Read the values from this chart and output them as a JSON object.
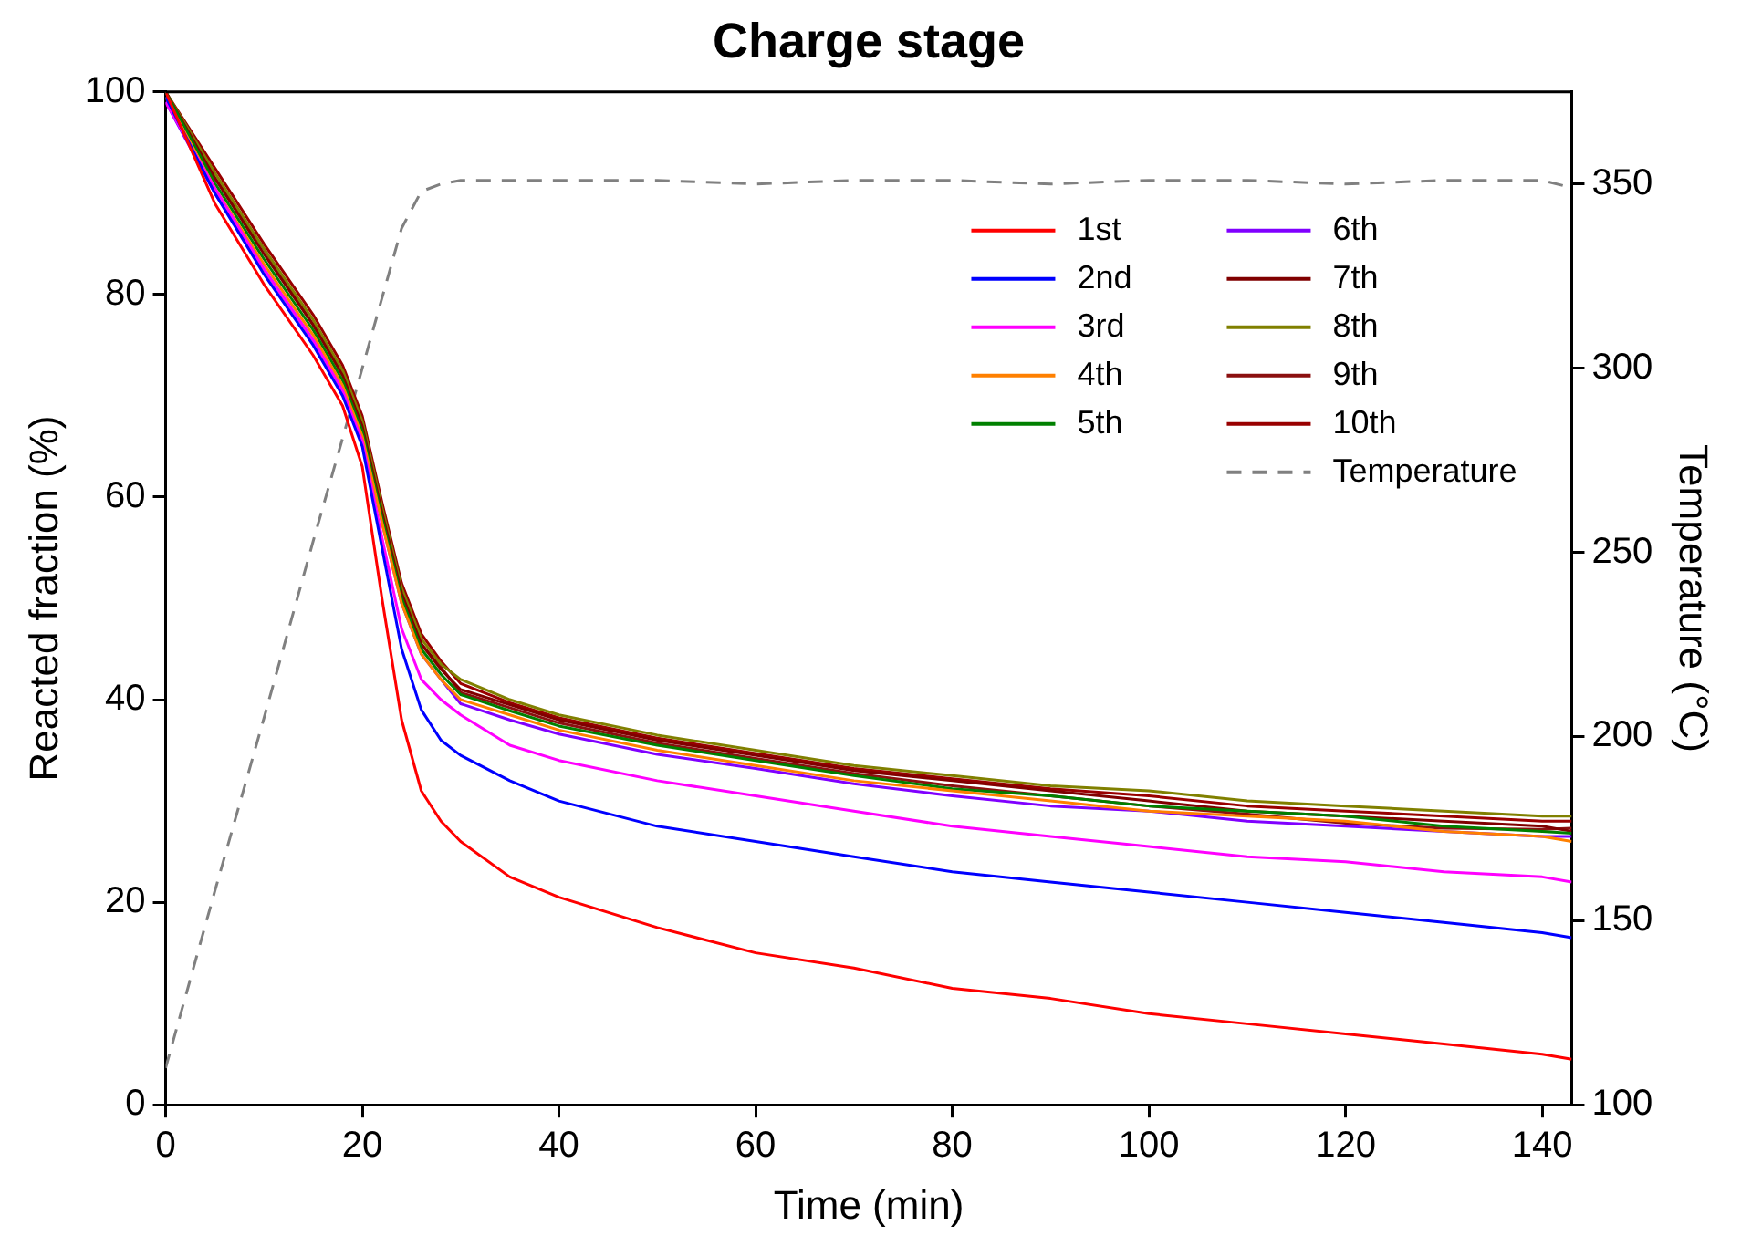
{
  "chart_data": {
    "type": "line",
    "title": "Charge stage",
    "xlabel": "Time (min)",
    "ylabel": "Reacted fraction (%)",
    "y2label": "Temperature (°C)",
    "x": [
      0,
      5,
      10,
      15,
      18,
      20,
      22,
      24,
      26,
      28,
      30,
      35,
      40,
      50,
      60,
      70,
      80,
      90,
      100,
      110,
      120,
      130,
      140,
      143
    ],
    "xlim": [
      0,
      143
    ],
    "xticks": [
      0,
      20,
      40,
      60,
      80,
      100,
      120,
      140
    ],
    "ylim": [
      0,
      100
    ],
    "yticks": [
      0,
      20,
      40,
      60,
      80,
      100
    ],
    "y2lim": [
      100,
      375
    ],
    "y2ticks": [
      100,
      150,
      200,
      250,
      300,
      350
    ],
    "grid": false,
    "legend": "top right",
    "marker": "none",
    "series": [
      {
        "name": "1st",
        "color": "#ff0000",
        "values": [
          100,
          89,
          81,
          74,
          69,
          63,
          50,
          38,
          31,
          28,
          26,
          22.5,
          20.5,
          17.5,
          15,
          13.5,
          11.5,
          10.5,
          9,
          8,
          7,
          6,
          5,
          4.5
        ]
      },
      {
        "name": "2nd",
        "color": "#0000ff",
        "values": [
          99.5,
          90,
          82,
          75,
          70,
          65,
          55,
          45,
          39,
          36,
          34.5,
          32,
          30,
          27.5,
          26,
          24.5,
          23,
          22,
          21,
          20,
          19,
          18,
          17,
          16.5
        ]
      },
      {
        "name": "3rd",
        "color": "#ff00ff",
        "values": [
          99,
          90.5,
          82.5,
          75.5,
          70.5,
          65.5,
          56,
          47,
          42,
          40,
          38.5,
          35.5,
          34,
          32,
          30.5,
          29,
          27.5,
          26.5,
          25.5,
          24.5,
          24,
          23,
          22.5,
          22
        ]
      },
      {
        "name": "4th",
        "color": "#ff8000",
        "values": [
          99.5,
          90.5,
          83,
          76,
          71,
          66,
          57.5,
          49.5,
          44.5,
          42,
          40,
          38.5,
          37,
          35,
          33.5,
          32,
          31,
          30,
          29,
          28.5,
          28,
          27,
          26.5,
          26
        ]
      },
      {
        "name": "5th",
        "color": "#008000",
        "values": [
          100,
          91,
          83.5,
          76.5,
          71.5,
          66.5,
          58,
          50,
          45,
          42.5,
          40.5,
          38.9,
          37.4,
          35.5,
          34,
          32.5,
          31.2,
          30.5,
          29.5,
          29,
          28.5,
          27.5,
          27,
          26.8
        ]
      },
      {
        "name": "6th",
        "color": "#8000ff",
        "values": [
          99,
          90,
          82.5,
          75.5,
          70.5,
          66,
          57.5,
          49.5,
          44.5,
          42,
          39.6,
          38,
          36.6,
          34.6,
          33.2,
          31.7,
          30.5,
          29.5,
          29,
          28,
          27.5,
          27,
          26.5,
          26.5
        ]
      },
      {
        "name": "7th",
        "color": "#800000",
        "values": [
          100,
          91.5,
          84,
          77,
          72,
          67,
          58.5,
          50.5,
          45.5,
          43,
          41,
          39.5,
          38,
          36,
          34.5,
          33,
          32,
          31,
          30,
          29,
          28.5,
          28,
          27.5,
          27
        ]
      },
      {
        "name": "8th",
        "color": "#808000",
        "values": [
          100,
          92,
          84.5,
          77.5,
          72.5,
          67.5,
          59,
          51,
          46,
          43.5,
          42,
          40,
          38.5,
          36.5,
          35,
          33.5,
          32.5,
          31.5,
          31,
          30,
          29.5,
          29,
          28.5,
          28.5
        ]
      },
      {
        "name": "9th",
        "color": "#8b1010",
        "values": [
          100,
          91.5,
          84.5,
          77,
          72.5,
          67,
          58.5,
          50.5,
          45.5,
          43.2,
          40.7,
          39.2,
          37.7,
          35.7,
          34.2,
          32.7,
          31.5,
          30.5,
          29.5,
          28.7,
          27.8,
          27.3,
          27.2,
          27.3
        ]
      },
      {
        "name": "10th",
        "color": "#990000",
        "values": [
          100,
          92.5,
          85,
          78,
          73,
          68,
          59.5,
          51.5,
          46.5,
          43.8,
          41.6,
          39.7,
          38.2,
          36.2,
          34.7,
          33.2,
          32.2,
          31.2,
          30.5,
          29.5,
          29,
          28.5,
          28,
          28
        ]
      },
      {
        "name": "Temperature",
        "color": "#808080",
        "axis": "y2",
        "line_style": "dashed",
        "values": [
          110,
          158,
          205,
          253,
          281,
          300,
          319,
          338,
          348,
          350,
          351,
          351,
          351,
          351,
          350,
          351,
          351,
          350,
          351,
          351,
          350,
          351,
          351,
          349
        ]
      }
    ]
  }
}
